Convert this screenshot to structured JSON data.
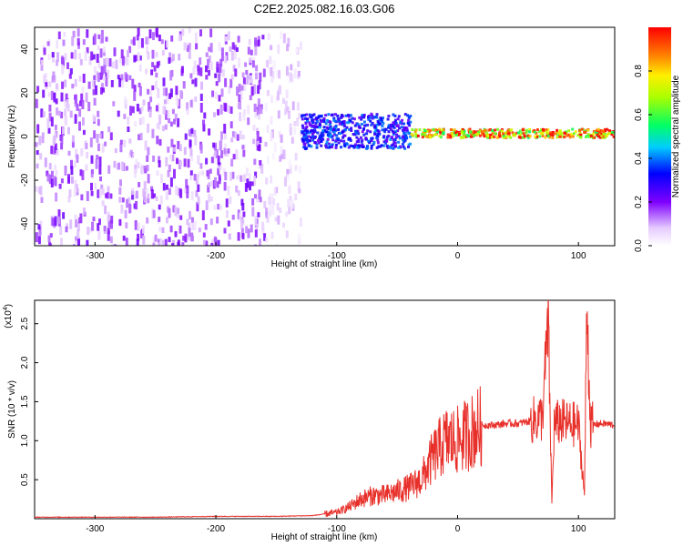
{
  "title": "C2E2.2025.082.16.03.G06",
  "colors": {
    "snr_line": "#e8302a",
    "spectrogram_low": "#d9b8f5",
    "spectrogram_mid": "#7a1fe0"
  },
  "chart_data": [
    {
      "type": "heatmap",
      "name": "spectrogram",
      "xlabel": "Height of straight line (km)",
      "ylabel": "Frequency (Hz)",
      "xlim": [
        -350,
        130
      ],
      "ylim": [
        -50,
        50
      ],
      "xticks": [
        -300,
        -200,
        -100,
        0,
        100
      ],
      "xtick_labels": [
        "-300",
        "-200",
        "-100",
        "0",
        "100"
      ],
      "yticks": [
        -40,
        -20,
        0,
        20,
        40
      ],
      "ytick_labels": [
        "-40",
        "-20",
        "0",
        "20",
        "40"
      ],
      "colorbar": {
        "label": "Normalized spectral amplitude",
        "range": [
          0,
          1
        ],
        "ticks": [
          0.0,
          0.2,
          0.4,
          0.6,
          0.8
        ],
        "tick_labels": [
          "0.0",
          "0.2",
          "0.4",
          "0.6",
          "0.8"
        ]
      },
      "regions": [
        {
          "x": [
            -350,
            -160
          ],
          "description": "broadband noise",
          "amplitude": 0.1
        },
        {
          "x": [
            -160,
            -130
          ],
          "description": "sparse noise",
          "amplitude": 0.05
        },
        {
          "x": [
            -130,
            -40
          ],
          "description": "scattered signal near 0 Hz",
          "freq_center": 3,
          "freq_spread": 8,
          "amplitude": 0.35
        },
        {
          "x": [
            -40,
            130
          ],
          "description": "narrow tone",
          "freq_center": 2,
          "freq_spread": 2,
          "amplitude": 0.9
        }
      ]
    },
    {
      "type": "line",
      "name": "snr",
      "xlabel": "Height of straight line (km)",
      "ylabel": "SNR (10 * v/v)",
      "y_multiplier": "(x10",
      "y_multiplier_exp": "4",
      "xlim": [
        -350,
        130
      ],
      "ylim": [
        0,
        2.8
      ],
      "xticks": [
        -300,
        -200,
        -100,
        0,
        100
      ],
      "xtick_labels": [
        "-300",
        "-200",
        "-100",
        "0",
        "100"
      ],
      "yticks": [
        0.5,
        1.0,
        1.5,
        2.0,
        2.5
      ],
      "ytick_labels": [
        "0.5",
        "1.0",
        "1.5",
        "2.0",
        "2.5"
      ],
      "series": [
        {
          "x": [
            -350,
            -300,
            -250,
            -200,
            -150,
            -120,
            -100,
            -90,
            -80,
            -70,
            -60,
            -50,
            -40,
            -30,
            -20,
            -10,
            0,
            10,
            20,
            30,
            40,
            50,
            60,
            70,
            75,
            78,
            80,
            85,
            90,
            100,
            105,
            107,
            110,
            120,
            130
          ],
          "y": [
            0.02,
            0.02,
            0.02,
            0.03,
            0.03,
            0.04,
            0.08,
            0.15,
            0.25,
            0.3,
            0.3,
            0.35,
            0.4,
            0.5,
            0.8,
            1.0,
            1.0,
            1.1,
            1.2,
            1.2,
            1.22,
            1.22,
            1.25,
            1.3,
            2.5,
            0.2,
            1.2,
            1.25,
            1.22,
            1.2,
            0.3,
            2.75,
            1.2,
            1.22,
            1.2
          ]
        }
      ]
    }
  ]
}
